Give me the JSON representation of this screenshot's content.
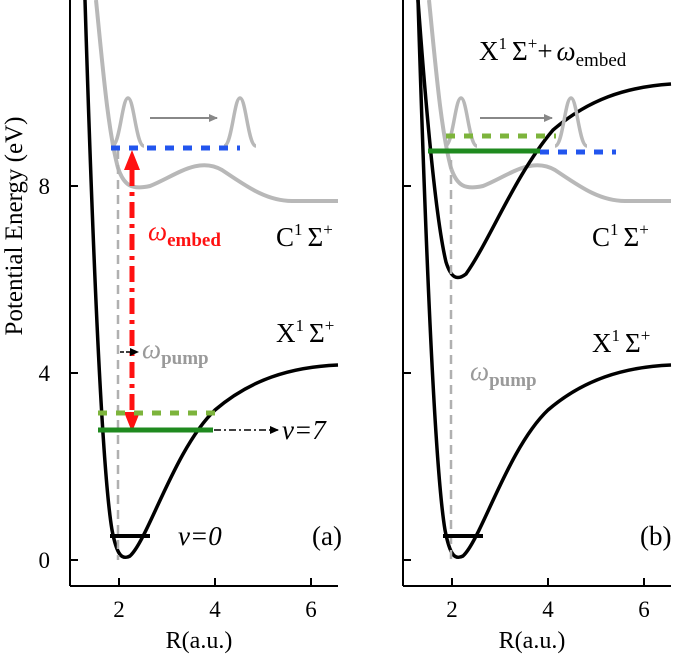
{
  "y_axis_label": "Potential Energy (eV)",
  "x_axis_label": "R(a.u.)",
  "y_ticks": [
    "0",
    "4",
    "8"
  ],
  "x_ticks": [
    "2",
    "4",
    "6"
  ],
  "panel_a": {
    "tag": "(a)",
    "state_X": {
      "main": "X",
      "sup": "1",
      "sym": "Σ",
      "plus": "+"
    },
    "state_C": {
      "main": "C",
      "sup": "1",
      "sym": "Σ",
      "plus": "+"
    },
    "omega_embed": {
      "sym": "ω",
      "sub": "embed"
    },
    "omega_pump": {
      "sym": "ω",
      "sub": "pump"
    },
    "v0_label": "ν=0",
    "v7_label": "ν=7"
  },
  "panel_b": {
    "tag": "(b)",
    "state_X": {
      "main": "X",
      "sup": "1",
      "sym": "Σ",
      "plus": "+"
    },
    "state_C": {
      "main": "C",
      "sup": "1",
      "sym": "Σ",
      "plus": "+"
    },
    "dressed_state": {
      "main": "X",
      "sup": "1",
      "sym": "Σ",
      "plus": "+",
      "op": "+",
      "omega": "ω",
      "sub": "embed"
    },
    "omega_pump": {
      "sym": "ω",
      "sub": "pump"
    }
  },
  "colors": {
    "ground_curve": "#000000",
    "excited_curve": "#b8b8b8",
    "wavepacket": "#b8b8b8",
    "level_v7": "#1f8a1f",
    "level_dotted_green": "#7db43c",
    "level_dotted_blue": "#2255ee",
    "omega_embed_arrow": "#ff1111",
    "pump_line": "#b0b0b0"
  }
}
